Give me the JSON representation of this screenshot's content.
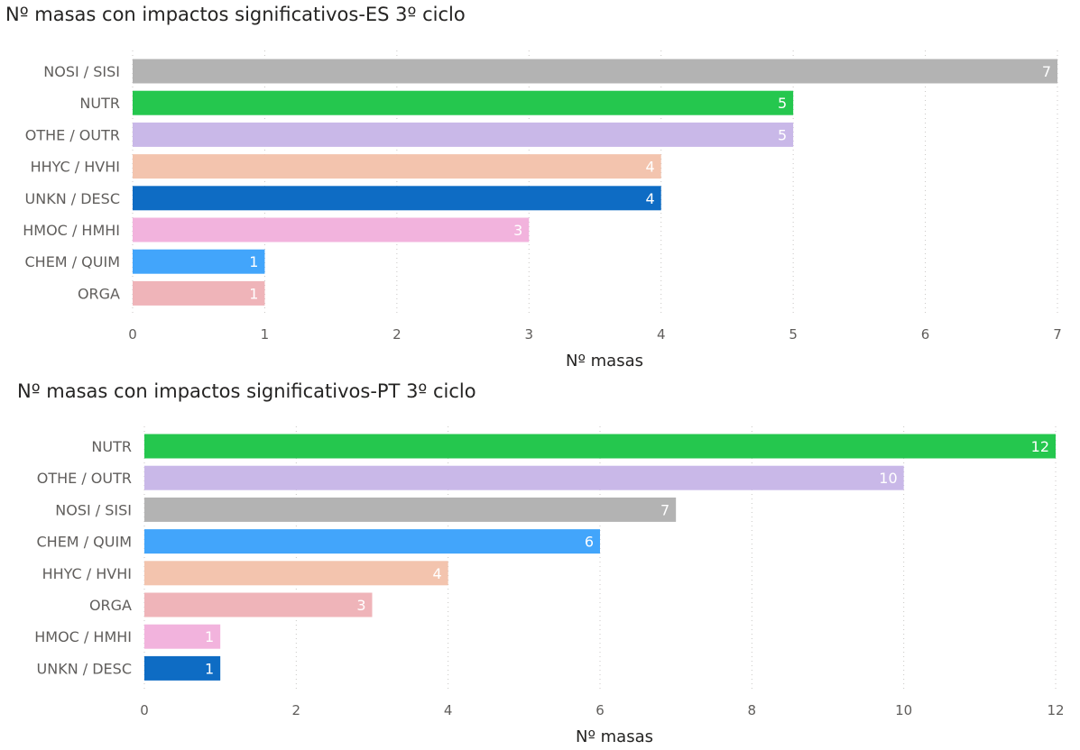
{
  "chart_data": [
    {
      "type": "bar",
      "orientation": "horizontal",
      "title": "Nº masas con impactos significativos-ES 3º ciclo",
      "xlabel": "Nº masas",
      "ylabel": "",
      "categories": [
        "NOSI / SISI",
        "NUTR",
        "OTHE / OUTR",
        "HHYC / HVHI",
        "UNKN / DESC",
        "HMOC / HMHI",
        "CHEM / QUIM",
        "ORGA"
      ],
      "values": [
        7,
        5,
        5,
        4,
        4,
        3,
        1,
        1
      ],
      "colors": [
        "#b3b3b3",
        "#25c74e",
        "#c9b8e8",
        "#f3c4ae",
        "#0e6cc4",
        "#f2b3dd",
        "#42a5fb",
        "#efb4b9"
      ],
      "xlim": [
        0,
        7
      ],
      "xticks": [
        0,
        1,
        2,
        3,
        4,
        5,
        6,
        7
      ],
      "grid": "vertical dotted",
      "data_labels": true
    },
    {
      "type": "bar",
      "orientation": "horizontal",
      "title": "Nº masas con impactos significativos-PT 3º ciclo",
      "xlabel": "Nº masas",
      "ylabel": "",
      "categories": [
        "NUTR",
        "OTHE / OUTR",
        "NOSI / SISI",
        "CHEM / QUIM",
        "HHYC / HVHI",
        "ORGA",
        "HMOC / HMHI",
        "UNKN / DESC"
      ],
      "values": [
        12,
        10,
        7,
        6,
        4,
        3,
        1,
        1
      ],
      "colors": [
        "#25c74e",
        "#c9b8e8",
        "#b3b3b3",
        "#42a5fb",
        "#f3c4ae",
        "#efb4b9",
        "#f2b3dd",
        "#0e6cc4"
      ],
      "xlim": [
        0,
        12
      ],
      "xticks": [
        0,
        2,
        4,
        6,
        8,
        10,
        12
      ],
      "grid": "vertical dotted",
      "data_labels": true
    }
  ]
}
